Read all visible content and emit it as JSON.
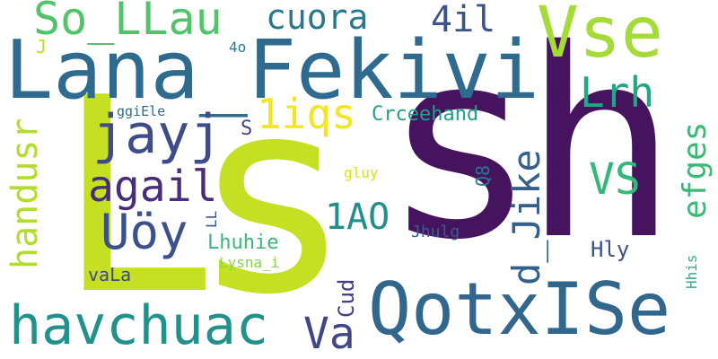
{
  "words": [
    {
      "text": "Ls",
      "color": "#c5df23"
    },
    {
      "text": "sh",
      "color": "#46135f"
    },
    {
      "text": "Lana_Fekivi",
      "color": "#2f6b8e"
    },
    {
      "text": "QotxISe",
      "color": "#31668d"
    },
    {
      "text": "havchuac",
      "color": "#21918c"
    },
    {
      "text": "Vse",
      "color": "#a5db36"
    },
    {
      "text": "So_LLau",
      "color": "#4fc46a"
    },
    {
      "text": "jayj",
      "color": "#3e4c8a"
    },
    {
      "text": "cuora",
      "color": "#2a788e"
    },
    {
      "text": "4il",
      "color": "#3a548c"
    },
    {
      "text": "Lrh",
      "color": "#22a785"
    },
    {
      "text": "1iqs",
      "color": "#f4e61e"
    },
    {
      "text": "agail",
      "color": "#472d7b"
    },
    {
      "text": "Uöy",
      "color": "#3b518b"
    },
    {
      "text": "Va",
      "color": "#3f4788"
    },
    {
      "text": "1AO",
      "color": "#218e8d"
    },
    {
      "text": "VS",
      "color": "#35b779"
    },
    {
      "text": "Crceehand",
      "color": "#1fa187"
    },
    {
      "text": "Lhuhie",
      "color": "#38b977"
    },
    {
      "text": "handusr",
      "color": "#b2dd2d"
    },
    {
      "text": "d_Jike",
      "color": "#34608d"
    },
    {
      "text": "efges",
      "color": "#3aba76"
    },
    {
      "text": "Cud",
      "color": "#433e85"
    },
    {
      "text": "Hly",
      "color": "#3b528b"
    },
    {
      "text": "Jhulg",
      "color": "#355f8d"
    },
    {
      "text": "vaLa",
      "color": "#3e4989"
    },
    {
      "text": "Lysna_i",
      "color": "#86d549"
    },
    {
      "text": "ggiEle",
      "color": "#2e6e8e"
    },
    {
      "text": "gluy",
      "color": "#d8e219"
    },
    {
      "text": "Q8",
      "color": "#2a768e"
    },
    {
      "text": "S",
      "color": "#414487"
    },
    {
      "text": "LL",
      "color": "#3a548c"
    },
    {
      "text": "4o",
      "color": "#29798e"
    },
    {
      "text": "J",
      "color": "#b8de29"
    },
    {
      "text": "Hhis",
      "color": "#2db27d"
    }
  ]
}
